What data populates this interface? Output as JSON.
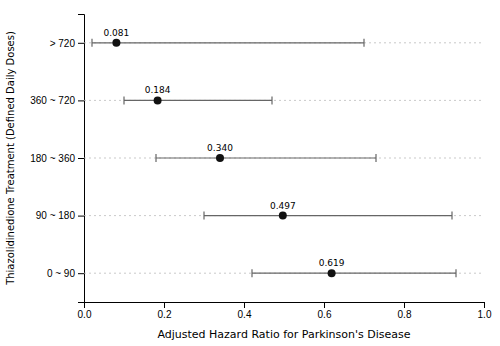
{
  "chart_data": {
    "type": "forest",
    "orientation": "horizontal",
    "categories": [
      "> 720",
      "360 ~ 720",
      "180 ~ 360",
      "90 ~ 180",
      "0 ~ 90"
    ],
    "values": [
      0.081,
      0.184,
      0.34,
      0.497,
      0.619
    ],
    "value_labels": [
      "0.081",
      "0.184",
      "0.340",
      "0.497",
      "0.619"
    ],
    "ci_low": [
      0.02,
      0.1,
      0.18,
      0.3,
      0.42
    ],
    "ci_high": [
      0.7,
      0.47,
      0.73,
      0.92,
      0.93
    ],
    "data_labels": true,
    "xlabel": "Adjusted Hazard Ratio for Parkinson's Disease",
    "ylabel": "Thiazolidinedione Treatment (Defined Daily Doses)",
    "xlim": [
      0.0,
      1.0
    ],
    "xticks": [
      {
        "value": 0.0,
        "label": "0.0"
      },
      0.2,
      0.4,
      0.6,
      0.8,
      {
        "value": 1.0,
        "label": "1.0"
      }
    ],
    "grid": true,
    "color": "#111111"
  }
}
